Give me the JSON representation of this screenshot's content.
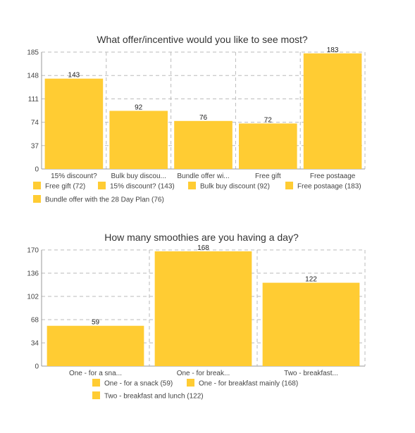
{
  "bar_color": "#FFCC33",
  "chart_data": [
    {
      "type": "bar",
      "title": "What offer/incentive would you like to see most?",
      "categories": [
        "15% discount?",
        "Bulk buy discou...",
        "Bundle offer wi...",
        "Free gift",
        "Free postaage"
      ],
      "values": [
        143,
        92,
        76,
        72,
        183
      ],
      "yticks": [
        0,
        37,
        74,
        111,
        148,
        185
      ],
      "ylim": [
        0,
        185
      ],
      "grid": true,
      "legend_position": "bottom",
      "legend": [
        "Free gift (72)",
        "15% discount? (143)",
        "Bulk buy discount (92)",
        "Free postaage (183)",
        "Bundle offer with the 28 Day Plan (76)"
      ]
    },
    {
      "type": "bar",
      "title": "How many smoothies are you having a day?",
      "categories": [
        "One - for a sna...",
        "One - for break...",
        "Two - breakfast..."
      ],
      "values": [
        59,
        168,
        122
      ],
      "yticks": [
        0,
        34,
        68,
        102,
        136,
        170
      ],
      "ylim": [
        0,
        170
      ],
      "grid": true,
      "legend_position": "bottom",
      "legend": [
        "One - for a snack (59)",
        "One - for breakfast mainly (168)",
        "Two - breakfast and lunch (122)"
      ]
    }
  ]
}
